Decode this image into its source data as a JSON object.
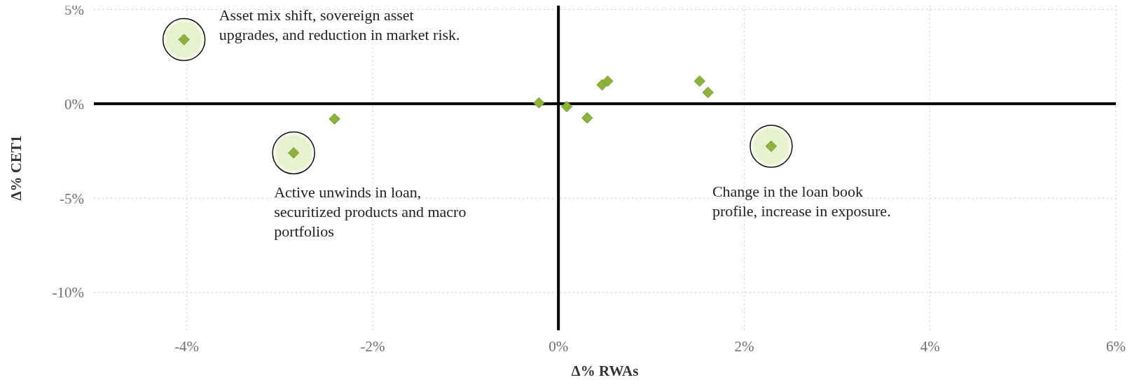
{
  "chart_data": {
    "type": "scatter",
    "xlabel": "Δ% RWAs",
    "ylabel": "Δ% CET1",
    "x": [
      -4.03,
      -2.41,
      -2.85,
      -0.21,
      0.09,
      0.31,
      0.47,
      0.53,
      1.52,
      1.61,
      2.29
    ],
    "values": [
      3.4,
      -0.8,
      -2.6,
      0.05,
      -0.15,
      -0.75,
      1.0,
      1.2,
      1.2,
      0.6,
      -2.25
    ],
    "color": "#8db23a",
    "marker": "diamond",
    "xlim": [
      -5,
      6
    ],
    "ylim": [
      -12,
      5.2
    ],
    "xticks": [
      {
        "value": -4,
        "label": "-4%"
      },
      {
        "value": -2,
        "label": "-2%"
      },
      {
        "value": 0,
        "label": "0%"
      },
      {
        "value": 2,
        "label": "2%"
      },
      {
        "value": 4,
        "label": "4%"
      },
      {
        "value": 6,
        "label": "6%"
      }
    ],
    "yticks": [
      {
        "value": -10,
        "label": "-10%"
      },
      {
        "value": -5,
        "label": "-5%"
      },
      {
        "value": 0,
        "label": "0%"
      },
      {
        "value": 5,
        "label": "5%"
      }
    ],
    "grid": true,
    "annotations": [
      {
        "text": "Asset mix shift, sovereign asset\nupgrades, and reduction in market risk.",
        "x": -4.03,
        "y": 3.4
      },
      {
        "text": "Active unwinds in loan,\nsecuritized products and macro\nportfolios",
        "x": -2.85,
        "y": -2.6
      },
      {
        "text": "Change in the loan book\nprofile, increase in exposure.",
        "x": 2.29,
        "y": -2.25
      }
    ]
  }
}
